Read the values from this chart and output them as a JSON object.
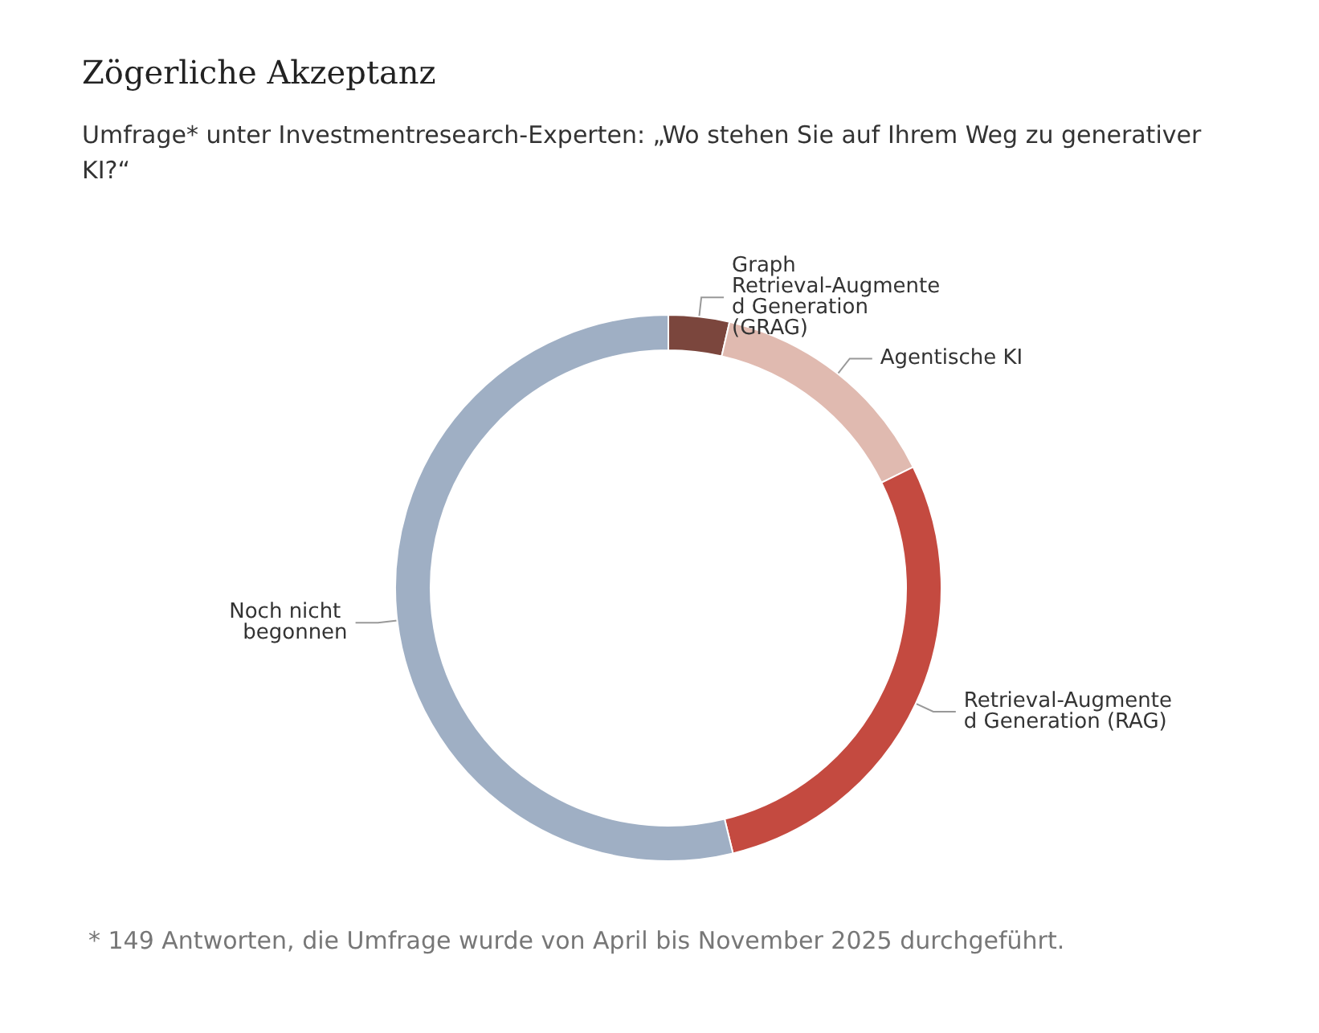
{
  "chart_data": {
    "type": "donut",
    "title": "Zögerliche Akzeptanz",
    "subtitle": "Umfrage* unter Investmentresearch-Experten: „Wo stehen Sie auf Ihrem Weg zu generativer KI?“",
    "categories": [
      "Graph Retrieval-Augmented Generation (GRAG)",
      "Agentische KI",
      "Retrieval-Augmented Generation (RAG)",
      "Noch nicht begonnen"
    ],
    "values": [
      3.6,
      14.1,
      28.5,
      53.8
    ],
    "colors": [
      "#7b463d",
      "#e0bab0",
      "#c44a40",
      "#9fafc4"
    ],
    "annotations": [
      "* 149 Antworten, die Umfrage wurde von April bis November 2025 durchgeführt."
    ],
    "legend": false
  }
}
